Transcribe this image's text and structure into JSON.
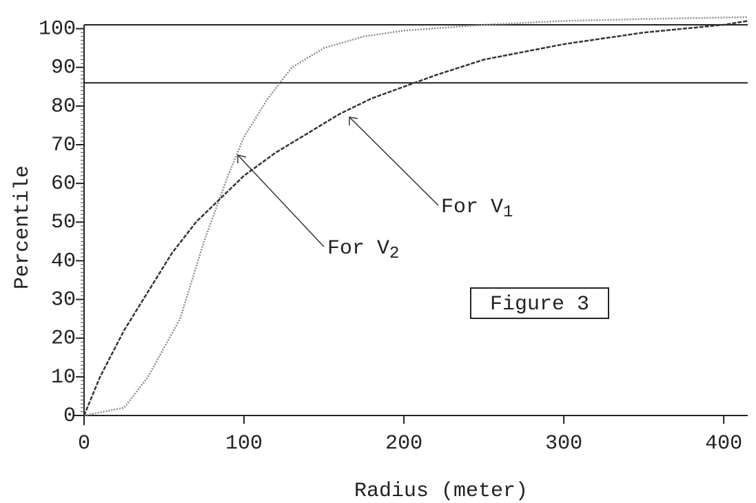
{
  "chart_data": {
    "type": "line",
    "xlabel": "Radius (meter)",
    "ylabel": "Percentile",
    "xlim": [
      0,
      415
    ],
    "ylim": [
      0,
      101
    ],
    "xticks": [
      0,
      100,
      200,
      300,
      400
    ],
    "yticks": [
      0,
      10,
      20,
      30,
      40,
      50,
      60,
      70,
      80,
      90,
      100
    ],
    "reference_line": 86,
    "series": [
      {
        "color": "#8a8a8a",
        "dash": "2 2",
        "x": [
          0,
          25,
          40,
          60,
          75,
          90,
          100,
          115,
          130,
          150,
          175,
          200,
          250,
          300,
          350,
          415
        ],
        "values": [
          0,
          2,
          10,
          25,
          45,
          62,
          72,
          82,
          90,
          95,
          98,
          99.5,
          101,
          102,
          102.5,
          103
        ]
      },
      {
        "color": "#333333",
        "dash": "6 2",
        "x": [
          0,
          10,
          25,
          40,
          55,
          70,
          85,
          100,
          120,
          140,
          160,
          180,
          200,
          220,
          250,
          300,
          350,
          400,
          415
        ],
        "values": [
          0,
          10,
          22,
          32,
          42,
          50,
          56,
          62,
          68,
          73,
          78,
          82,
          85,
          88,
          92,
          96,
          99,
          101,
          102
        ]
      }
    ],
    "annotations": [
      {
        "text": "For V",
        "subscript": "1"
      },
      {
        "text": "For V",
        "subscript": "2"
      }
    ],
    "figure_label": "Figure 3"
  }
}
